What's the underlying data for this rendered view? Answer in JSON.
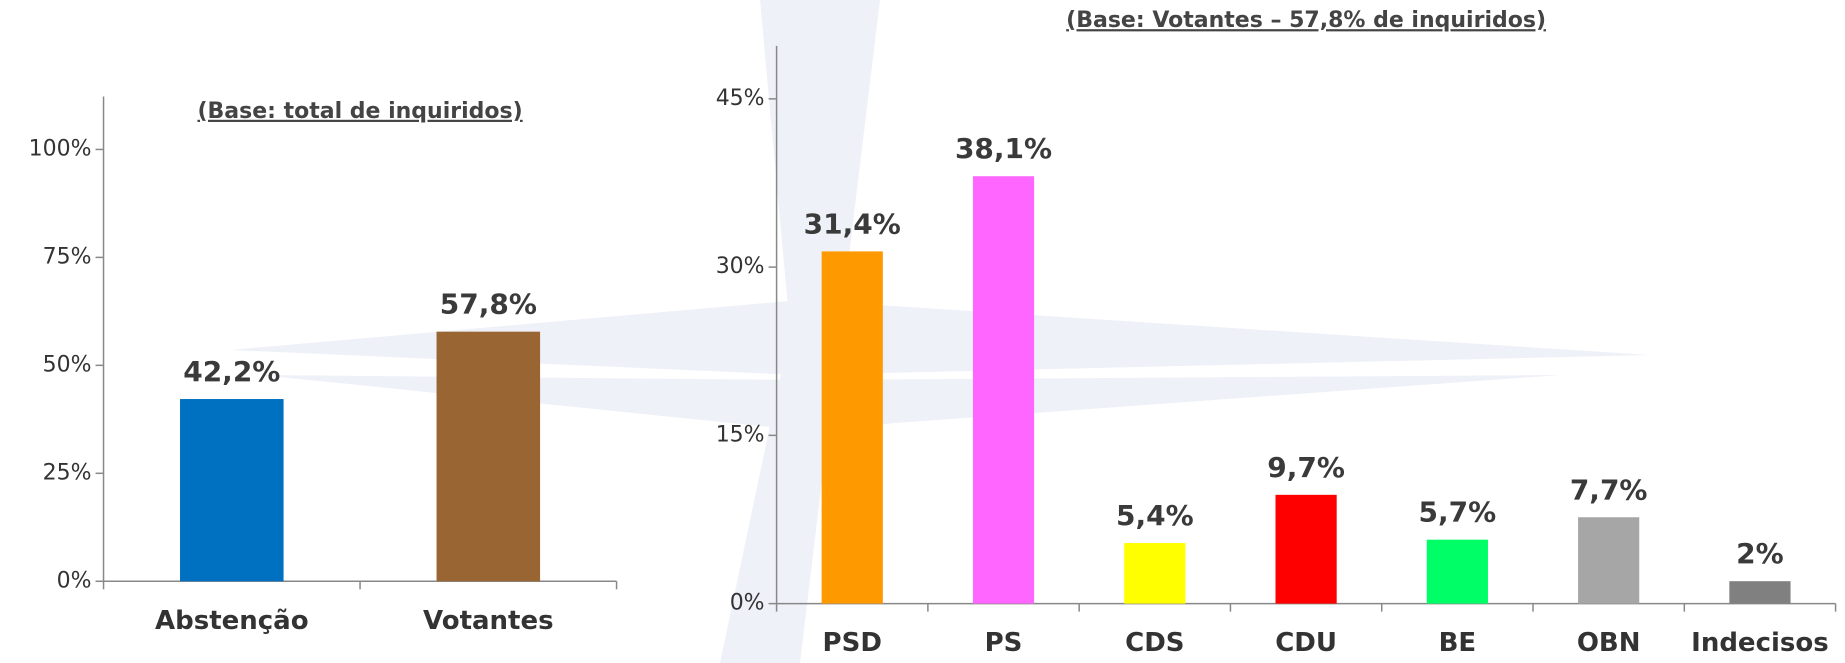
{
  "chart_data": [
    {
      "type": "bar",
      "title": "(Base: total de inquiridos)",
      "categories": [
        "Abstenção",
        "Votantes"
      ],
      "values": [
        42.2,
        57.8
      ],
      "value_labels": [
        "42,2%",
        "57,8%"
      ],
      "colors": [
        "#0070c0",
        "#996633"
      ],
      "ylim": [
        0,
        100
      ],
      "yticks": [
        {
          "value": 0,
          "label": "0%"
        },
        {
          "value": 25,
          "label": "25%"
        },
        {
          "value": 50,
          "label": "50%"
        },
        {
          "value": 75,
          "label": "75%"
        },
        {
          "value": 100,
          "label": "100%"
        }
      ]
    },
    {
      "type": "bar",
      "title": "(Base: Votantes – 57,8% de inquiridos)",
      "categories": [
        "PSD",
        "PS",
        "CDS",
        "CDU",
        "BE",
        "OBN",
        "Indecisos"
      ],
      "values": [
        31.4,
        38.1,
        5.4,
        9.7,
        5.7,
        7.7,
        2
      ],
      "value_labels": [
        "31,4%",
        "38,1%",
        "5,4%",
        "9,7%",
        "5,7%",
        "7,7%",
        "2%"
      ],
      "colors": [
        "#ff9900",
        "#ff66ff",
        "#ffff00",
        "#ff0000",
        "#00ff66",
        "#a6a6a6",
        "#808080"
      ],
      "ylim": [
        0,
        45
      ],
      "yticks": [
        {
          "value": 0,
          "label": "0%"
        },
        {
          "value": 15,
          "label": "15%"
        },
        {
          "value": 30,
          "label": "30%"
        },
        {
          "value": 45,
          "label": "45%"
        }
      ]
    }
  ]
}
